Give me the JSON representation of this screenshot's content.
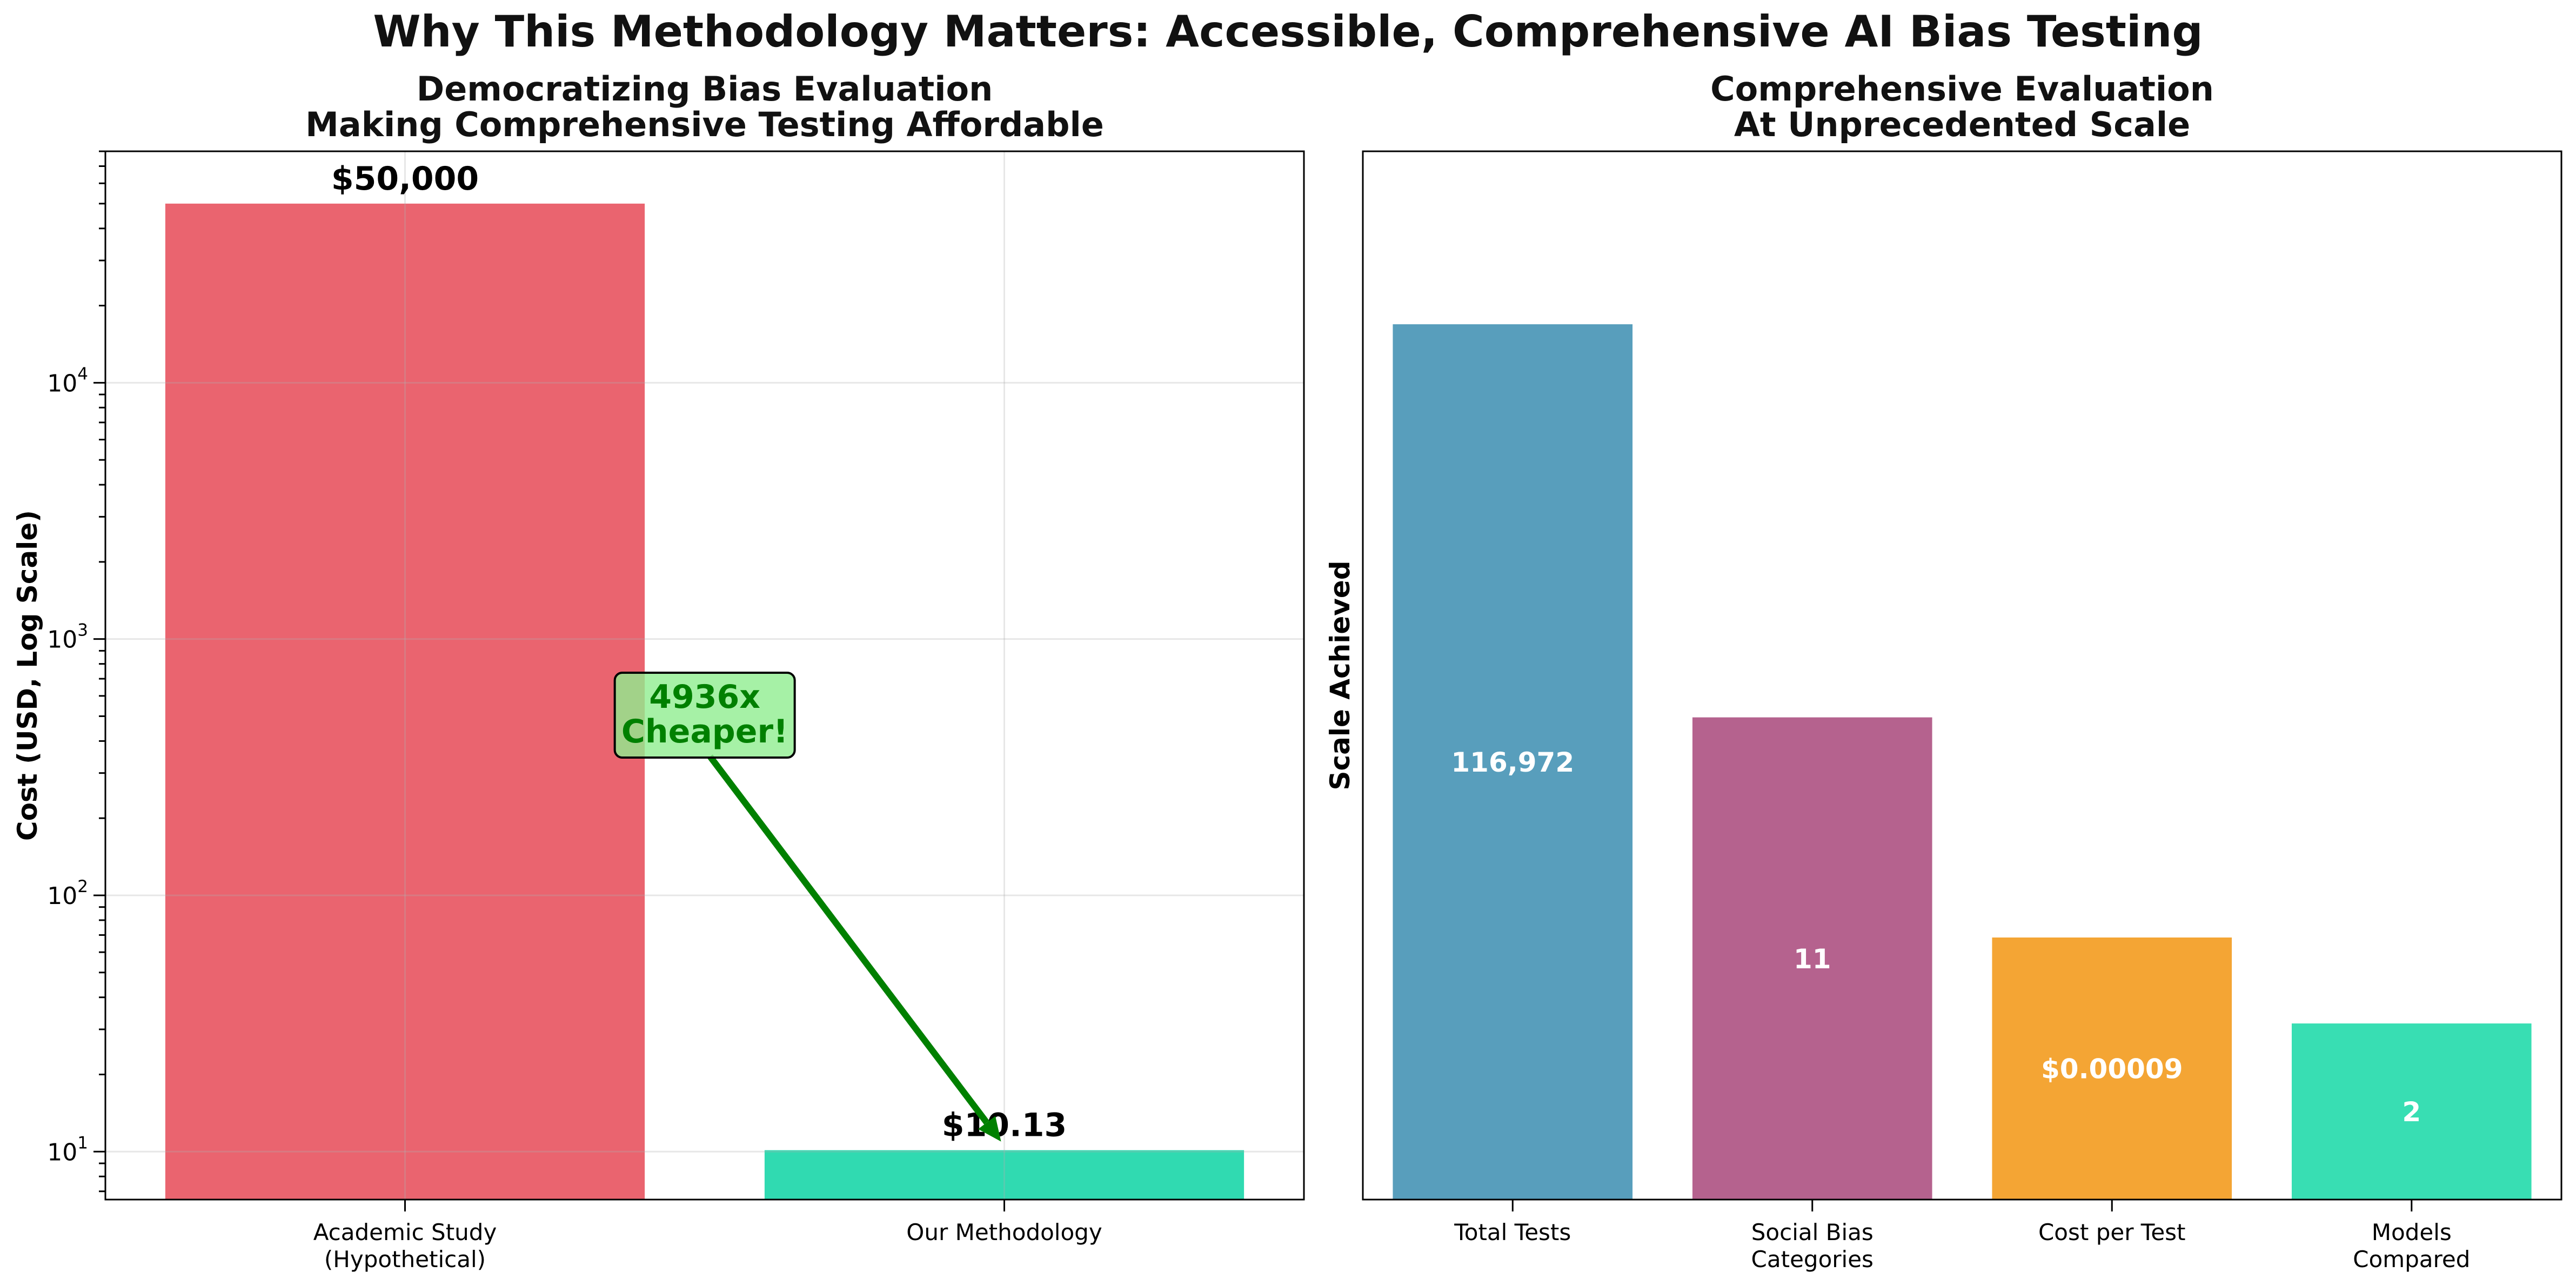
{
  "title": "Why This Methodology Matters: Accessible, Comprehensive AI Bias Testing",
  "chart_data": [
    {
      "type": "bar",
      "title_lines": [
        "Democratizing Bias Evaluation",
        "Making Comprehensive Testing Affordable"
      ],
      "categories": [
        [
          "Academic Study",
          "(Hypothetical)"
        ],
        [
          "Our Methodology"
        ]
      ],
      "values": [
        50000,
        10.13
      ],
      "data_labels": [
        "$50,000",
        "$10.13"
      ],
      "colors": [
        "#e8535f",
        "#1ad6a8"
      ],
      "ylabel": "Cost (USD, Log Scale)",
      "yscale": "log",
      "ylim": [
        6.5,
        80000
      ],
      "yticks": [
        10,
        100,
        1000,
        10000
      ],
      "ytick_exponents": [
        "1",
        "2",
        "3",
        "4"
      ],
      "grid": true,
      "annotation": {
        "text": [
          "4936x",
          "Cheaper!"
        ],
        "color": "#008000",
        "box_color": "#90ee90"
      }
    },
    {
      "type": "bar",
      "title_lines": [
        "Comprehensive Evaluation",
        "At Unprecedented Scale"
      ],
      "categories": [
        [
          "Total Tests"
        ],
        [
          "Social Bias",
          "Categories"
        ],
        [
          "Cost per Test"
        ],
        [
          "Models",
          "Compared"
        ]
      ],
      "values": [
        116972,
        11,
        9e-05,
        2
      ],
      "data_labels": [
        "116,972",
        "11",
        "$0.00009",
        "2"
      ],
      "relative_heights": [
        0.835,
        0.46,
        0.25,
        0.168
      ],
      "colors": [
        "#2e86ab",
        "#a23b72",
        "#f18f01",
        "#06d6a0"
      ],
      "ylabel": "Scale Achieved",
      "yticks": [],
      "grid": false
    }
  ]
}
